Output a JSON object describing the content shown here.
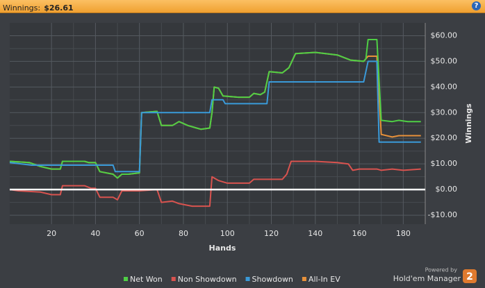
{
  "header": {
    "label": "Winnings:",
    "value": "$26.61",
    "help": "?"
  },
  "chart_data": {
    "type": "line",
    "xlabel": "Hands",
    "ylabel": "Winnings",
    "xlim": [
      1,
      190
    ],
    "ylim": [
      -13.5,
      65
    ],
    "xticks": [
      20,
      40,
      60,
      80,
      100,
      120,
      140,
      160,
      180
    ],
    "yticks": [
      {
        "value": -10,
        "label": "-$10.00"
      },
      {
        "value": 0,
        "label": "$0.00"
      },
      {
        "value": 10,
        "label": "$10.00"
      },
      {
        "value": 20,
        "label": "$20.00"
      },
      {
        "value": 30,
        "label": "$30.00"
      },
      {
        "value": 40,
        "label": "$40.00"
      },
      {
        "value": 50,
        "label": "$50.00"
      },
      {
        "value": 60,
        "label": "$60.00"
      }
    ],
    "grid": true,
    "zero_line": true,
    "legend": "bottom",
    "series": [
      {
        "name": "All-In EV",
        "color": "#e8913a",
        "x": [
          1,
          10,
          15,
          20,
          24,
          25,
          35,
          37,
          40,
          42,
          48,
          50,
          52,
          55,
          60,
          61,
          68,
          70,
          75,
          78,
          82,
          86,
          88,
          92,
          93,
          94,
          96,
          98,
          105,
          110,
          112,
          115,
          117,
          119,
          125,
          128,
          131,
          140,
          150,
          156,
          162,
          163,
          164,
          168,
          170,
          175,
          178,
          188
        ],
        "values": [
          11,
          10.5,
          9,
          8,
          8,
          11,
          11,
          10.5,
          10.5,
          7,
          6,
          4.5,
          6,
          6,
          6.5,
          30,
          30.5,
          25,
          25,
          26.5,
          25,
          24,
          23.5,
          24,
          30,
          40,
          39.5,
          36.5,
          36,
          36,
          37.5,
          37,
          38,
          46,
          45.5,
          47.5,
          53,
          53.5,
          52.5,
          50.5,
          50,
          51,
          52,
          52,
          21.5,
          20.5,
          21,
          21
        ]
      },
      {
        "name": "Net Won",
        "color": "#4fcf45",
        "x": [
          1,
          10,
          15,
          20,
          24,
          25,
          35,
          37,
          40,
          42,
          48,
          50,
          52,
          55,
          60,
          61,
          68,
          70,
          75,
          78,
          82,
          86,
          88,
          92,
          93,
          94,
          96,
          98,
          105,
          110,
          112,
          115,
          117,
          119,
          125,
          128,
          131,
          140,
          150,
          156,
          162,
          163,
          164,
          168,
          170,
          175,
          178,
          182,
          188
        ],
        "values": [
          11,
          10.5,
          9,
          8,
          8,
          11,
          11,
          10.5,
          10.5,
          7,
          6,
          4.5,
          6,
          6,
          6.5,
          30,
          30.5,
          25,
          25,
          26.5,
          25,
          24,
          23.5,
          24,
          30,
          40,
          39.5,
          36.5,
          36,
          36,
          37.5,
          37,
          38,
          46,
          45.5,
          47.5,
          53,
          53.5,
          52.5,
          50.5,
          50,
          51,
          58.5,
          58.5,
          27,
          26.5,
          27,
          26.5,
          26.5
        ]
      },
      {
        "name": "Non Showdown",
        "color": "#d9534f",
        "x": [
          1,
          5,
          15,
          20,
          24,
          25,
          35,
          38,
          40,
          42,
          48,
          50,
          52,
          60,
          68,
          70,
          75,
          78,
          84,
          92,
          93,
          96,
          100,
          110,
          112,
          118,
          125,
          127,
          129,
          140,
          150,
          155,
          157,
          160,
          168,
          170,
          175,
          180,
          188
        ],
        "values": [
          0,
          -0.5,
          -1,
          -2,
          -2,
          1.5,
          1.5,
          0.5,
          0.5,
          -3,
          -3,
          -4,
          -0.5,
          -0.5,
          0,
          -5,
          -4.5,
          -5.5,
          -6.5,
          -6.5,
          5,
          3.5,
          2.5,
          2.5,
          4,
          4,
          4,
          6,
          11,
          11,
          10.5,
          10,
          7.5,
          8,
          8,
          7.5,
          8,
          7.5,
          8
        ]
      },
      {
        "name": "Showdown",
        "color": "#3a9ad9",
        "x": [
          1,
          11,
          48,
          49,
          60,
          61,
          92,
          93,
          98,
          99,
          118,
          119,
          162,
          164,
          168,
          169,
          188
        ],
        "values": [
          10.5,
          9.5,
          9.5,
          7,
          7,
          30,
          30,
          35,
          35,
          33.5,
          33.5,
          42,
          42,
          50,
          50,
          18.5,
          18.5
        ]
      }
    ],
    "legend_order": [
      1,
      2,
      3,
      0
    ]
  },
  "footer": {
    "powered": "Powered by",
    "product": "Hold'em Manager",
    "badge": "2"
  }
}
